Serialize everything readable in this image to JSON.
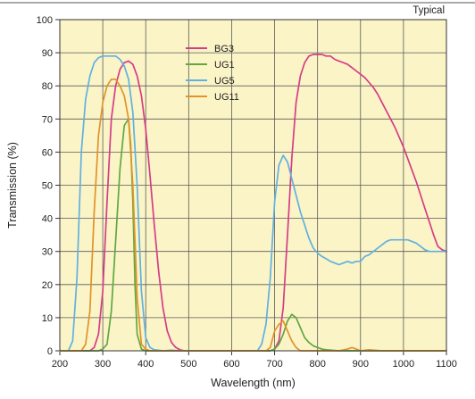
{
  "chart_data": {
    "type": "line",
    "corner_label": "Typical",
    "xlabel": "Wavelength (nm)",
    "ylabel": "Transmission (%)",
    "xlim": [
      200,
      1100
    ],
    "ylim": [
      0,
      100
    ],
    "x_ticks": [
      200,
      300,
      400,
      500,
      600,
      700,
      800,
      900,
      1000,
      1100
    ],
    "y_ticks": [
      0,
      10,
      20,
      30,
      40,
      50,
      60,
      70,
      80,
      90,
      100
    ],
    "grid": true,
    "legend_position": "top-center",
    "colors": {
      "background": "#fbf4c6",
      "grid": "#5a5a5a",
      "frame": "#333333"
    },
    "series": [
      {
        "name": "BG3",
        "color": "#d63d87",
        "x": [
          200,
          270,
          280,
          290,
          300,
          310,
          320,
          330,
          340,
          350,
          360,
          370,
          380,
          390,
          400,
          410,
          420,
          430,
          440,
          450,
          460,
          470,
          480,
          490,
          500,
          690,
          700,
          710,
          720,
          730,
          740,
          750,
          760,
          770,
          780,
          790,
          800,
          810,
          820,
          830,
          840,
          850,
          860,
          870,
          880,
          890,
          900,
          910,
          920,
          930,
          940,
          950,
          960,
          970,
          980,
          990,
          1000,
          1010,
          1020,
          1030,
          1040,
          1050,
          1060,
          1070,
          1080,
          1090,
          1100
        ],
        "y": [
          0,
          0,
          1,
          5,
          18,
          45,
          70,
          80,
          85,
          87,
          87.5,
          86.5,
          83,
          77,
          67,
          53,
          38,
          24,
          13,
          6,
          2.5,
          1,
          0.3,
          0,
          0,
          0,
          0.5,
          3,
          13,
          35,
          58,
          75,
          83,
          87,
          89,
          89.5,
          89.5,
          89.5,
          89,
          89,
          88,
          87.5,
          87,
          86.5,
          85.5,
          84.5,
          83.5,
          82.5,
          81,
          79.5,
          77.5,
          75,
          72.5,
          70,
          67.5,
          64.5,
          61.5,
          58,
          54.5,
          51,
          47,
          43,
          39,
          35,
          31.5,
          30.5,
          30
        ]
      },
      {
        "name": "UG1",
        "color": "#5fa843",
        "x": [
          200,
          280,
          290,
          300,
          310,
          320,
          330,
          340,
          350,
          360,
          365,
          370,
          375,
          380,
          390,
          400,
          690,
          700,
          710,
          720,
          730,
          740,
          750,
          760,
          770,
          780,
          790,
          800,
          810,
          820,
          850,
          870,
          880,
          890,
          900,
          920,
          940,
          960,
          1000,
          1100
        ],
        "y": [
          0,
          0,
          0,
          0.5,
          2,
          12,
          33,
          55,
          68,
          70,
          62,
          45,
          20,
          5,
          0.5,
          0,
          0,
          0.5,
          2,
          5,
          9,
          11,
          10,
          7,
          4,
          2.5,
          1.5,
          1,
          0.5,
          0.3,
          0,
          0,
          0,
          0,
          0,
          0,
          0,
          0,
          0,
          0
        ]
      },
      {
        "name": "UG5",
        "color": "#5fb1e2",
        "x": [
          200,
          220,
          230,
          240,
          250,
          260,
          270,
          280,
          290,
          300,
          310,
          320,
          330,
          340,
          350,
          360,
          370,
          380,
          390,
          400,
          410,
          420,
          440,
          460,
          480,
          500,
          660,
          670,
          680,
          690,
          700,
          710,
          720,
          730,
          740,
          750,
          760,
          770,
          780,
          790,
          800,
          810,
          820,
          830,
          840,
          850,
          860,
          870,
          880,
          890,
          900,
          910,
          920,
          930,
          940,
          950,
          960,
          970,
          980,
          990,
          1000,
          1010,
          1020,
          1030,
          1040,
          1050,
          1060,
          1070,
          1080,
          1090,
          1100
        ],
        "y": [
          0,
          0,
          3,
          22,
          60,
          76,
          83,
          87,
          88.5,
          89,
          89,
          89,
          89,
          88,
          86,
          82,
          72,
          50,
          18,
          4,
          1,
          0.3,
          0,
          0.2,
          0,
          0,
          0,
          2,
          8,
          22,
          45,
          56,
          59,
          57,
          52,
          47,
          42,
          38,
          34,
          31,
          29.5,
          28.5,
          27.8,
          27,
          26.5,
          26,
          26.5,
          27,
          26.5,
          27,
          27,
          28.5,
          29,
          30,
          31,
          32,
          33,
          33.5,
          33.5,
          33.5,
          33.5,
          33.5,
          33,
          32.5,
          31.5,
          30.5,
          30,
          30,
          30,
          30,
          30
        ]
      },
      {
        "name": "UG11",
        "color": "#e1932b",
        "x": [
          200,
          250,
          260,
          270,
          280,
          290,
          300,
          310,
          320,
          330,
          340,
          350,
          360,
          370,
          380,
          390,
          400,
          410,
          500,
          680,
          690,
          700,
          710,
          720,
          730,
          740,
          750,
          760,
          800,
          850,
          870,
          880,
          890,
          900,
          920,
          950,
          1000,
          1100
        ],
        "y": [
          0,
          0,
          2,
          12,
          42,
          65,
          75,
          80,
          82,
          82,
          80,
          77,
          70,
          50,
          16,
          2,
          0.5,
          0,
          0,
          0,
          1,
          6,
          8,
          9,
          6,
          3,
          1,
          0,
          0,
          0,
          0.5,
          1,
          0.5,
          0,
          0.3,
          0,
          0,
          0
        ]
      }
    ]
  }
}
